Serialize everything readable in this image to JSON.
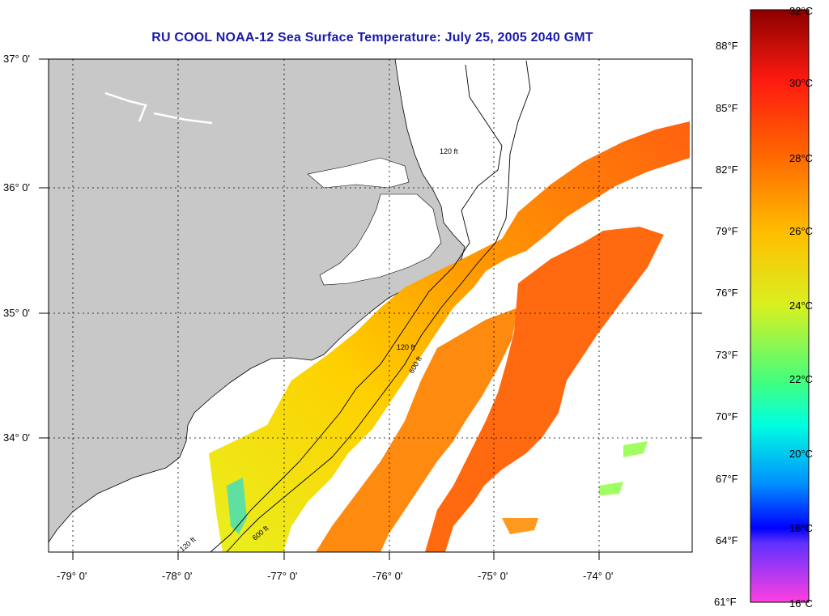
{
  "title": "RU COOL  NOAA-12  Sea Surface Temperature:  July 25, 2005 2040 GMT",
  "latitude_labels": [
    "37° 0'",
    "36° 0'",
    "35° 0'",
    "34° 0'"
  ],
  "longitude_labels": [
    "-79° 0'",
    "-78° 0'",
    "-77° 0'",
    "-76° 0'",
    "-75° 0'",
    "-74° 0'"
  ],
  "contour_labels": [
    "120 ft",
    "600 ft"
  ],
  "colorbar": {
    "celsius_labels": [
      "32°C",
      "30°C",
      "28°C",
      "26°C",
      "24°C",
      "22°C",
      "20°C",
      "18°C",
      "16°C"
    ],
    "fahrenheit_labels": [
      "88°F",
      "85°F",
      "82°F",
      "79°F",
      "76°F",
      "73°F",
      "70°F",
      "67°F",
      "64°F",
      "61°F"
    ],
    "colors": [
      "#8b0000",
      "#ff2a1a",
      "#ff7f00",
      "#ffff00",
      "#b0ff40",
      "#00ffcc",
      "#0080ff",
      "#0000ff",
      "#8040ff",
      "#ff40e0"
    ]
  },
  "colors": {
    "land": "#c8c8c8",
    "sst_warm": "#ff6a10",
    "sst_mid": "#ffb000",
    "sst_cool": "#e8f020",
    "title": "#1a1aa8"
  }
}
